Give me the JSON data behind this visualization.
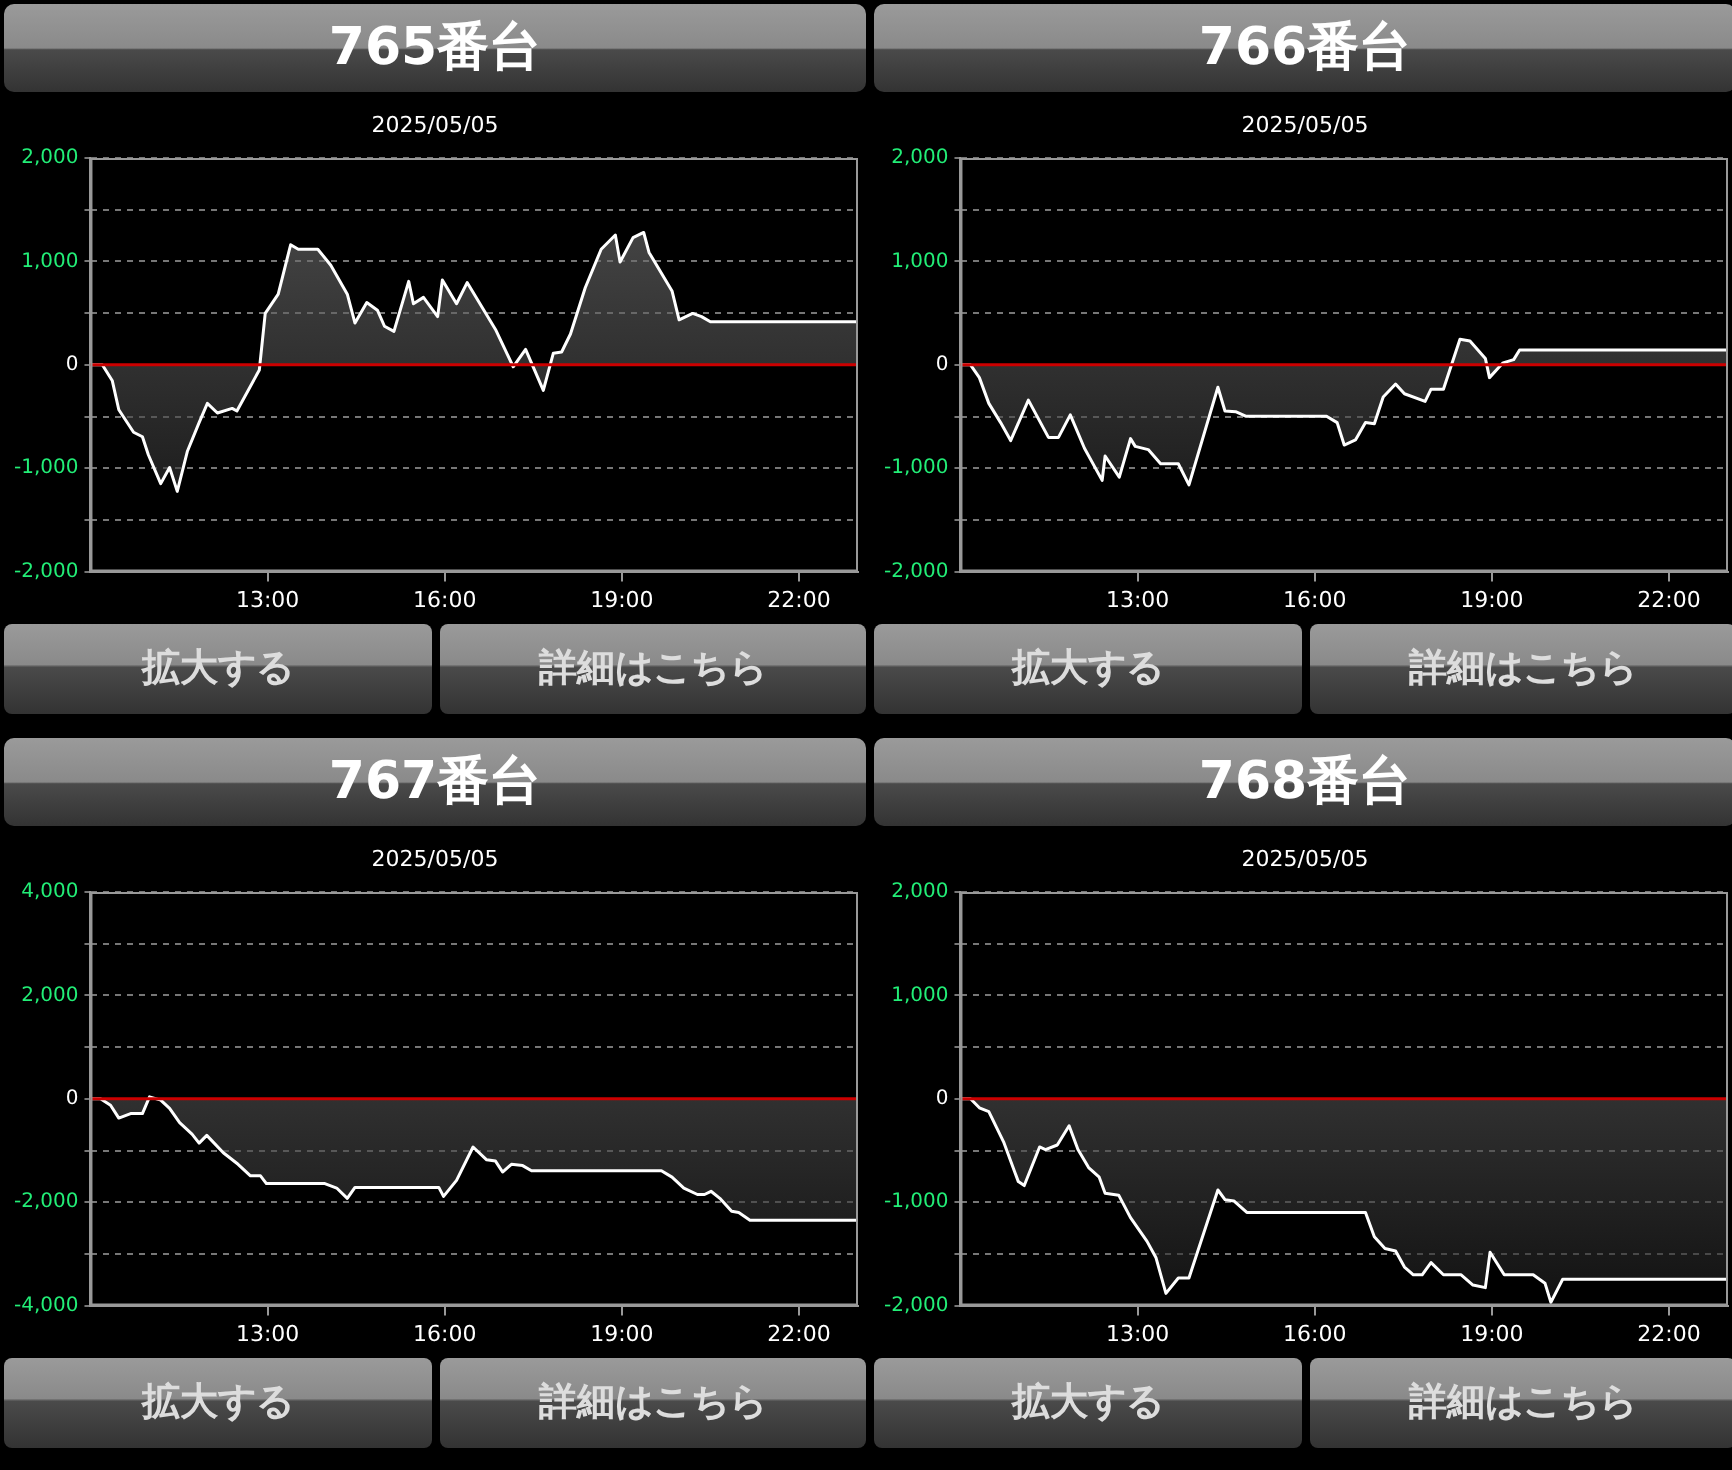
{
  "chart_data": [
    {
      "type": "area",
      "title": "765番台",
      "subtitle": "2025/05/05",
      "xlim": [
        10,
        23
      ],
      "xticks": [
        {
          "value": 13,
          "label": "13:00"
        },
        {
          "value": 16,
          "label": "16:00"
        },
        {
          "value": 19,
          "label": "19:00"
        },
        {
          "value": 22,
          "label": "22:00"
        }
      ],
      "ylim": [
        -2000,
        2000
      ],
      "yticks": [
        {
          "value": -2000,
          "label": "-2,000"
        },
        {
          "value": -1500,
          "label": null
        },
        {
          "value": -1000,
          "label": "-1,000"
        },
        {
          "value": -500,
          "label": null
        },
        {
          "value": 0,
          "label": "0"
        },
        {
          "value": 500,
          "label": null
        },
        {
          "value": 1000,
          "label": "1,000"
        },
        {
          "value": 1500,
          "label": null
        },
        {
          "value": 2000,
          "label": "2,000"
        }
      ],
      "grid": "y",
      "legend": false,
      "marker": "none",
      "ref_lines": [
        {
          "axis": "y",
          "value": 0,
          "color": "#cc0000"
        }
      ],
      "annotations": [
        "拡大する",
        "詳細はこちら"
      ],
      "x": [
        10,
        10.2,
        10.37,
        10.48,
        10.73,
        10.88,
        10.98,
        11.19,
        11.34,
        11.47,
        11.64,
        11.84,
        11.98,
        12.15,
        12.4,
        12.48,
        12.86,
        12.96,
        13.18,
        13.39,
        13.52,
        13.85,
        14.07,
        14.35,
        14.48,
        14.68,
        14.86,
        14.98,
        15.14,
        15.39,
        15.47,
        15.64,
        15.88,
        15.96,
        16.2,
        16.38,
        16.86,
        17.16,
        17.37,
        17.67,
        17.84,
        17.98,
        18.13,
        18.38,
        18.65,
        18.89,
        18.97,
        19.19,
        19.37,
        19.46,
        19.85,
        19.97,
        20.2,
        20.35,
        20.5,
        23
      ],
      "series": [
        {
          "color": "#ffffff",
          "values": [
            0,
            0,
            -155,
            -435,
            -652,
            -696,
            -870,
            -1149,
            -994,
            -1224,
            -839,
            -559,
            -373,
            -466,
            -422,
            -447,
            -50,
            497,
            683,
            1161,
            1118,
            1118,
            963,
            683,
            404,
            602,
            528,
            373,
            323,
            807,
            590,
            652,
            466,
            820,
            590,
            795,
            342,
            -19,
            149,
            -248,
            112,
            124,
            298,
            745,
            1118,
            1255,
            994,
            1230,
            1280,
            1087,
            714,
            435,
            497,
            466,
            416,
            416
          ]
        }
      ]
    },
    {
      "type": "area",
      "title": "766番台",
      "subtitle": "2025/05/05",
      "xlim": [
        10,
        23
      ],
      "xticks": [
        {
          "value": 13,
          "label": "13:00"
        },
        {
          "value": 16,
          "label": "16:00"
        },
        {
          "value": 19,
          "label": "19:00"
        },
        {
          "value": 22,
          "label": "22:00"
        }
      ],
      "ylim": [
        -2000,
        2000
      ],
      "yticks": [
        {
          "value": -2000,
          "label": "-2,000"
        },
        {
          "value": -1500,
          "label": null
        },
        {
          "value": -1000,
          "label": "-1,000"
        },
        {
          "value": -500,
          "label": null
        },
        {
          "value": 0,
          "label": "0"
        },
        {
          "value": 500,
          "label": null
        },
        {
          "value": 1000,
          "label": "1,000"
        },
        {
          "value": 1500,
          "label": null
        },
        {
          "value": 2000,
          "label": "2,000"
        }
      ],
      "grid": "y",
      "legend": false,
      "marker": "none",
      "ref_lines": [
        {
          "axis": "y",
          "value": 0,
          "color": "#cc0000"
        }
      ],
      "annotations": [
        "拡大する",
        "詳細はこちら"
      ],
      "x": [
        10,
        10.17,
        10.32,
        10.48,
        10.68,
        10.85,
        11.15,
        11.49,
        11.66,
        11.86,
        12.1,
        12.4,
        12.45,
        12.69,
        12.88,
        12.96,
        13.18,
        13.39,
        13.69,
        13.87,
        14.36,
        14.48,
        14.66,
        14.83,
        16.2,
        16.38,
        16.5,
        16.69,
        16.86,
        17.01,
        17.16,
        17.37,
        17.52,
        17.87,
        17.97,
        18.18,
        18.46,
        18.63,
        18.89,
        18.96,
        19.19,
        19.37,
        19.47,
        23
      ],
      "series": [
        {
          "color": "#ffffff",
          "values": [
            0,
            0,
            -124,
            -373,
            -559,
            -733,
            -342,
            -702,
            -702,
            -484,
            -807,
            -1118,
            -882,
            -1087,
            -714,
            -789,
            -820,
            -957,
            -957,
            -1161,
            -217,
            -447,
            -453,
            -497,
            -497,
            -559,
            -776,
            -727,
            -559,
            -571,
            -311,
            -186,
            -280,
            -354,
            -236,
            -236,
            248,
            230,
            62,
            -124,
            19,
            50,
            143,
            143
          ]
        }
      ]
    },
    {
      "type": "area",
      "title": "767番台",
      "subtitle": "2025/05/05",
      "xlim": [
        10,
        23
      ],
      "xticks": [
        {
          "value": 13,
          "label": "13:00"
        },
        {
          "value": 16,
          "label": "16:00"
        },
        {
          "value": 19,
          "label": "19:00"
        },
        {
          "value": 22,
          "label": "22:00"
        }
      ],
      "ylim": [
        -4000,
        4000
      ],
      "yticks": [
        {
          "value": -4000,
          "label": "-4,000"
        },
        {
          "value": -3000,
          "label": null
        },
        {
          "value": -2000,
          "label": "-2,000"
        },
        {
          "value": -1000,
          "label": null
        },
        {
          "value": 0,
          "label": "0"
        },
        {
          "value": 1000,
          "label": null
        },
        {
          "value": 2000,
          "label": "2,000"
        },
        {
          "value": 3000,
          "label": null
        },
        {
          "value": 4000,
          "label": "4,000"
        }
      ],
      "grid": "y",
      "legend": false,
      "marker": "none",
      "ref_lines": [
        {
          "axis": "y",
          "value": 0,
          "color": "#cc0000"
        }
      ],
      "annotations": [
        "拡大する",
        "詳細はこちら"
      ],
      "x": [
        10,
        10.17,
        10.34,
        10.48,
        10.68,
        10.88,
        11.0,
        11.19,
        11.34,
        11.51,
        11.72,
        11.84,
        11.97,
        12.25,
        12.5,
        12.71,
        12.88,
        12.98,
        13.97,
        14.17,
        14.35,
        14.48,
        15.9,
        15.98,
        16.2,
        16.48,
        16.71,
        16.86,
        16.98,
        17.13,
        17.32,
        17.47,
        19.67,
        19.85,
        20.05,
        20.28,
        20.4,
        20.51,
        20.66,
        20.86,
        20.98,
        21.17,
        23
      ],
      "series": [
        {
          "color": "#ffffff",
          "values": [
            0,
            0,
            -124,
            -373,
            -286,
            -286,
            37,
            -25,
            -186,
            -460,
            -683,
            -857,
            -708,
            -1043,
            -1267,
            -1490,
            -1490,
            -1640,
            -1640,
            -1726,
            -1925,
            -1714,
            -1714,
            -1888,
            -1577,
            -932,
            -1180,
            -1205,
            -1416,
            -1267,
            -1292,
            -1391,
            -1391,
            -1515,
            -1726,
            -1851,
            -1851,
            -1789,
            -1925,
            -2174,
            -2199,
            -2348,
            -2348
          ]
        }
      ]
    },
    {
      "type": "area",
      "title": "768番台",
      "subtitle": "2025/05/05",
      "xlim": [
        10,
        23
      ],
      "xticks": [
        {
          "value": 13,
          "label": "13:00"
        },
        {
          "value": 16,
          "label": "16:00"
        },
        {
          "value": 19,
          "label": "19:00"
        },
        {
          "value": 22,
          "label": "22:00"
        }
      ],
      "ylim": [
        -2000,
        2000
      ],
      "yticks": [
        {
          "value": -2000,
          "label": "-2,000"
        },
        {
          "value": -1500,
          "label": null
        },
        {
          "value": -1000,
          "label": "-1,000"
        },
        {
          "value": -500,
          "label": null
        },
        {
          "value": 0,
          "label": "0"
        },
        {
          "value": 500,
          "label": null
        },
        {
          "value": 1000,
          "label": "1,000"
        },
        {
          "value": 1500,
          "label": null
        },
        {
          "value": 2000,
          "label": "2,000"
        }
      ],
      "grid": "y",
      "legend": false,
      "marker": "none",
      "ref_lines": [
        {
          "axis": "y",
          "value": 0,
          "color": "#cc0000"
        }
      ],
      "annotations": [
        "拡大する",
        "詳細はこちら"
      ],
      "x": [
        10,
        10.17,
        10.32,
        10.48,
        10.73,
        10.98,
        11.08,
        11.34,
        11.44,
        11.64,
        11.84,
        11.99,
        12.17,
        12.35,
        12.45,
        12.68,
        12.88,
        13.16,
        13.31,
        13.48,
        13.69,
        13.87,
        14.36,
        14.48,
        14.63,
        14.85,
        16.86,
        17.01,
        17.19,
        17.37,
        17.52,
        17.67,
        17.82,
        17.97,
        18.18,
        18.48,
        18.68,
        18.89,
        18.97,
        19.21,
        19.7,
        19.9,
        20.0,
        20.2,
        23
      ],
      "series": [
        {
          "color": "#ffffff",
          "values": [
            0,
            0,
            -87,
            -124,
            -416,
            -801,
            -839,
            -466,
            -491,
            -447,
            -261,
            -491,
            -665,
            -758,
            -913,
            -932,
            -1149,
            -1379,
            -1534,
            -1882,
            -1733,
            -1733,
            -882,
            -975,
            -988,
            -1099,
            -1099,
            -1335,
            -1447,
            -1472,
            -1627,
            -1702,
            -1702,
            -1584,
            -1702,
            -1702,
            -1801,
            -1826,
            -1484,
            -1702,
            -1702,
            -1783,
            -1969,
            -1745,
            -1745
          ]
        }
      ]
    }
  ]
}
